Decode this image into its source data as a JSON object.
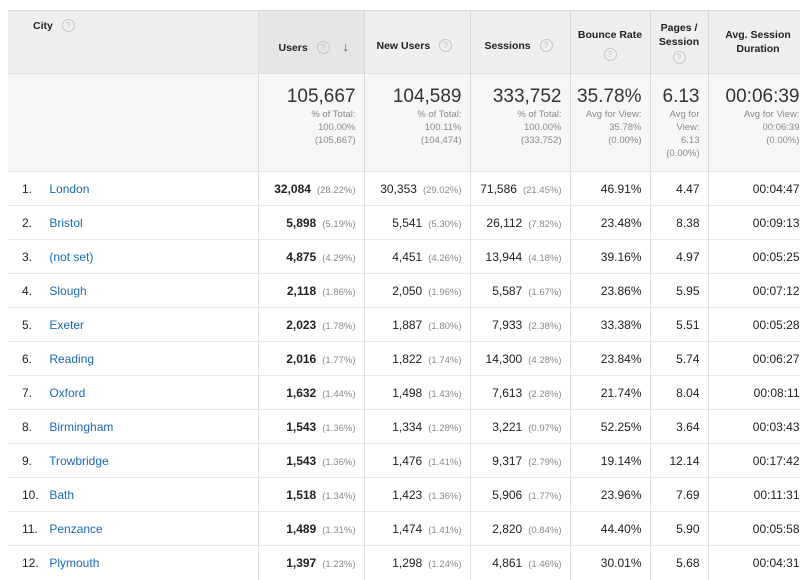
{
  "headers": {
    "city": "City",
    "users": "Users",
    "new_users": "New Users",
    "sessions": "Sessions",
    "bounce_rate": "Bounce Rate",
    "pages_session_1": "Pages /",
    "pages_session_2": "Session",
    "avg_duration_1": "Avg. Session",
    "avg_duration_2": "Duration",
    "help_glyph": "?",
    "sort_glyph": "↓"
  },
  "totals": {
    "users": {
      "value": "105,667",
      "l1": "% of Total:",
      "l2": "100.00%",
      "l3": "(105,667)"
    },
    "new_users": {
      "value": "104,589",
      "l1": "% of Total:",
      "l2": "100.11%",
      "l3": "(104,474)"
    },
    "sessions": {
      "value": "333,752",
      "l1": "% of Total:",
      "l2": "100.00%",
      "l3": "(333,752)"
    },
    "bounce_rate": {
      "value": "35.78%",
      "l1": "Avg for View:",
      "l2": "35.78%",
      "l3": "(0.00%)"
    },
    "pages_session": {
      "value": "6.13",
      "l1": "Avg for",
      "l2": "View:",
      "l3": "6.13",
      "l4": "(0.00%)"
    },
    "avg_duration": {
      "value": "00:06:39",
      "l1": "Avg for View:",
      "l2": "00:06:39",
      "l3": "(0.00%)"
    }
  },
  "rows": [
    {
      "idx": "1.",
      "city": "London",
      "users": "32,084",
      "users_pct": "(28.22%)",
      "new_users": "30,353",
      "new_users_pct": "(29.02%)",
      "sessions": "71,586",
      "sessions_pct": "(21.45%)",
      "bounce": "46.91%",
      "pages": "4.47",
      "duration": "00:04:47"
    },
    {
      "idx": "2.",
      "city": "Bristol",
      "users": "5,898",
      "users_pct": "(5.19%)",
      "new_users": "5,541",
      "new_users_pct": "(5.30%)",
      "sessions": "26,112",
      "sessions_pct": "(7.82%)",
      "bounce": "23.48%",
      "pages": "8.38",
      "duration": "00:09:13"
    },
    {
      "idx": "3.",
      "city": "(not set)",
      "users": "4,875",
      "users_pct": "(4.29%)",
      "new_users": "4,451",
      "new_users_pct": "(4.26%)",
      "sessions": "13,944",
      "sessions_pct": "(4.18%)",
      "bounce": "39.16%",
      "pages": "4.97",
      "duration": "00:05:25"
    },
    {
      "idx": "4.",
      "city": "Slough",
      "users": "2,118",
      "users_pct": "(1.86%)",
      "new_users": "2,050",
      "new_users_pct": "(1.96%)",
      "sessions": "5,587",
      "sessions_pct": "(1.67%)",
      "bounce": "23.86%",
      "pages": "5.95",
      "duration": "00:07:12"
    },
    {
      "idx": "5.",
      "city": "Exeter",
      "users": "2,023",
      "users_pct": "(1.78%)",
      "new_users": "1,887",
      "new_users_pct": "(1.80%)",
      "sessions": "7,933",
      "sessions_pct": "(2.38%)",
      "bounce": "33.38%",
      "pages": "5.51",
      "duration": "00:05:28"
    },
    {
      "idx": "6.",
      "city": "Reading",
      "users": "2,016",
      "users_pct": "(1.77%)",
      "new_users": "1,822",
      "new_users_pct": "(1.74%)",
      "sessions": "14,300",
      "sessions_pct": "(4.28%)",
      "bounce": "23.84%",
      "pages": "5.74",
      "duration": "00:06:27"
    },
    {
      "idx": "7.",
      "city": "Oxford",
      "users": "1,632",
      "users_pct": "(1.44%)",
      "new_users": "1,498",
      "new_users_pct": "(1.43%)",
      "sessions": "7,613",
      "sessions_pct": "(2.28%)",
      "bounce": "21.74%",
      "pages": "8.04",
      "duration": "00:08:11"
    },
    {
      "idx": "8.",
      "city": "Birmingham",
      "users": "1,543",
      "users_pct": "(1.36%)",
      "new_users": "1,334",
      "new_users_pct": "(1.28%)",
      "sessions": "3,221",
      "sessions_pct": "(0.97%)",
      "bounce": "52.25%",
      "pages": "3.64",
      "duration": "00:03:43"
    },
    {
      "idx": "9.",
      "city": "Trowbridge",
      "users": "1,543",
      "users_pct": "(1.36%)",
      "new_users": "1,476",
      "new_users_pct": "(1.41%)",
      "sessions": "9,317",
      "sessions_pct": "(2.79%)",
      "bounce": "19.14%",
      "pages": "12.14",
      "duration": "00:17:42"
    },
    {
      "idx": "10.",
      "city": "Bath",
      "users": "1,518",
      "users_pct": "(1.34%)",
      "new_users": "1,423",
      "new_users_pct": "(1.36%)",
      "sessions": "5,906",
      "sessions_pct": "(1.77%)",
      "bounce": "23.96%",
      "pages": "7.69",
      "duration": "00:11:31"
    },
    {
      "idx": "11.",
      "city": "Penzance",
      "users": "1,489",
      "users_pct": "(1.31%)",
      "new_users": "1,474",
      "new_users_pct": "(1.41%)",
      "sessions": "2,820",
      "sessions_pct": "(0.84%)",
      "bounce": "44.40%",
      "pages": "5.90",
      "duration": "00:05:58"
    },
    {
      "idx": "12.",
      "city": "Plymouth",
      "users": "1,397",
      "users_pct": "(1.23%)",
      "new_users": "1,298",
      "new_users_pct": "(1.24%)",
      "sessions": "4,861",
      "sessions_pct": "(1.46%)",
      "bounce": "30.01%",
      "pages": "5.68",
      "duration": "00:04:31"
    }
  ]
}
